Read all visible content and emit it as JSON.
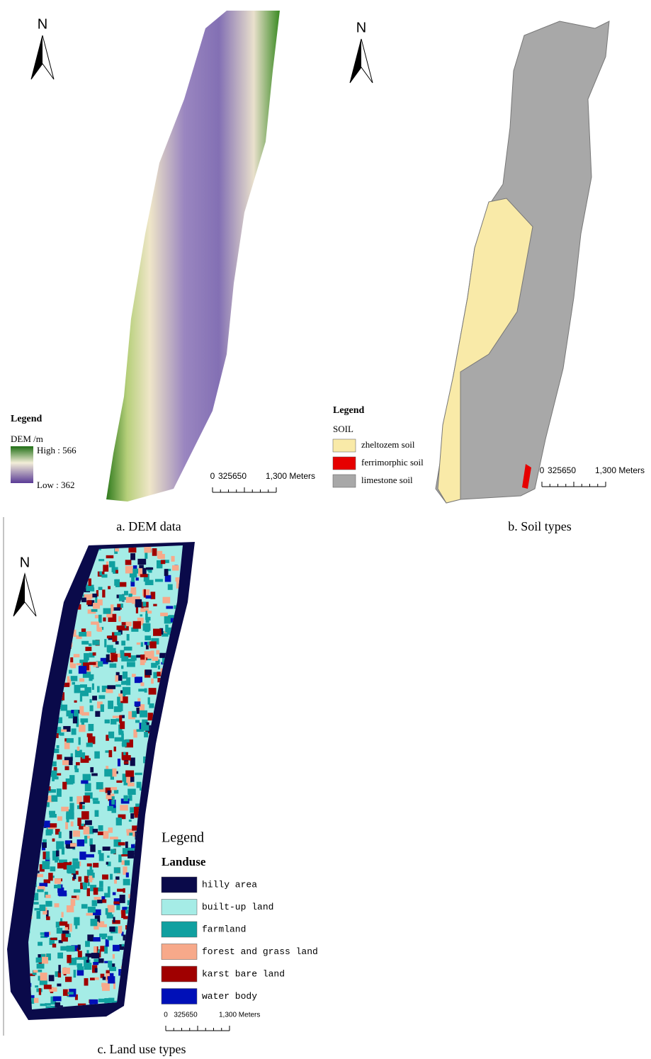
{
  "panels": [
    {
      "north": "N",
      "legend_title": "Legend",
      "legend_subtitle": "DEM /m",
      "high": "High : 566",
      "low": "Low : 362",
      "scale": [
        "0",
        "325650",
        "1,300 Meters"
      ],
      "caption": "a. DEM data"
    },
    {
      "north": "N",
      "legend_title": "Legend",
      "legend_subtitle": "SOIL",
      "items": [
        {
          "label": "zheltozem soil",
          "color": "#f9eaa8"
        },
        {
          "label": "ferrimorphic soil",
          "color": "#e60000"
        },
        {
          "label": "limestone soil",
          "color": "#a8a8a8"
        }
      ],
      "scale": [
        "0",
        "325650",
        "1,300 Meters"
      ],
      "caption": "b. Soil types"
    },
    {
      "north": "N",
      "legend_title": "Legend",
      "legend_subtitle": "Landuse",
      "items": [
        {
          "label": "hilly area",
          "color": "#0a0a4a"
        },
        {
          "label": "built-up land",
          "color": "#a5ece6"
        },
        {
          "label": "farmland",
          "color": "#10a0a0"
        },
        {
          "label": "forest and grass land",
          "color": "#f7a98a"
        },
        {
          "label": "karst bare land",
          "color": "#a00000"
        },
        {
          "label": "water body",
          "color": "#0010b8"
        }
      ],
      "scale": [
        "0",
        "325650",
        "1,300 Meters"
      ],
      "caption": "c. Land use types"
    }
  ]
}
